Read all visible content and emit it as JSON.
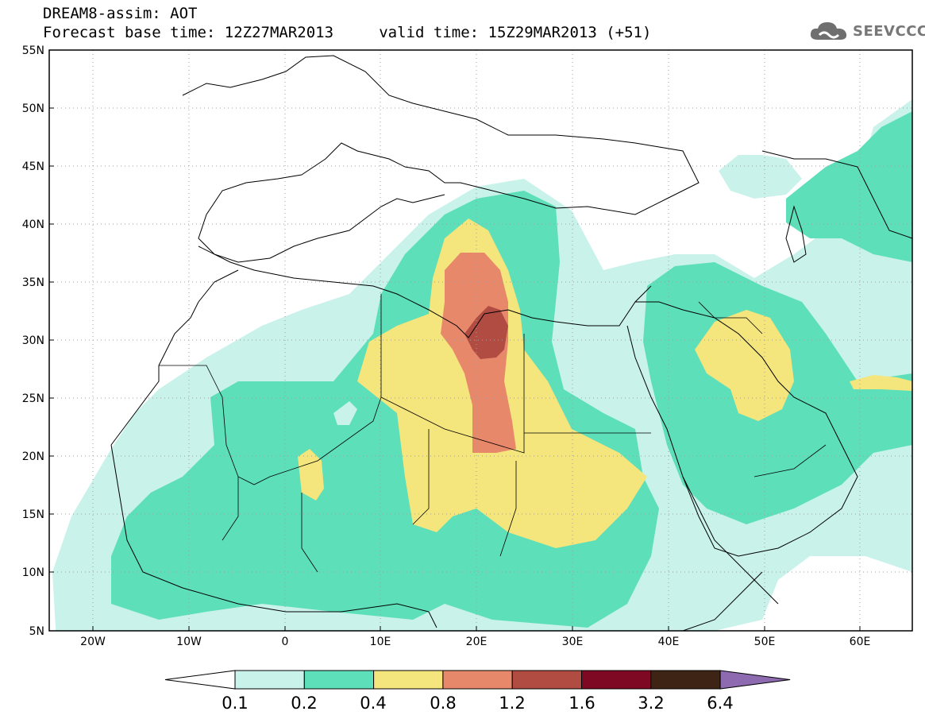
{
  "header": {
    "line1": "DREAM8-assim: AOT",
    "line2": "Forecast base time: 12Z27MAR2013     valid time: 15Z29MAR2013 (+51)",
    "logo_text": "SEEVCCC",
    "logo_icon": "cloud-icon"
  },
  "map": {
    "lon_range": [
      -25,
      65
    ],
    "lat_range": [
      5,
      55
    ],
    "lat_ticks": [
      "55N",
      "50N",
      "45N",
      "40N",
      "35N",
      "30N",
      "25N",
      "20N",
      "15N",
      "10N",
      "5N"
    ],
    "lon_ticks": [
      "20W",
      "10W",
      "0",
      "10E",
      "20E",
      "30E",
      "40E",
      "50E",
      "60E"
    ],
    "gridlines": "dotted"
  },
  "colorbar": {
    "levels": [
      "0.1",
      "0.2",
      "0.4",
      "0.8",
      "1.2",
      "1.6",
      "3.2",
      "6.4"
    ],
    "colors": [
      "#ffffff",
      "#c8f2ea",
      "#5ddfb9",
      "#f4e57c",
      "#e8886a",
      "#b04c42",
      "#7d0a22",
      "#3d2414",
      "#8e6bb0"
    ]
  }
}
